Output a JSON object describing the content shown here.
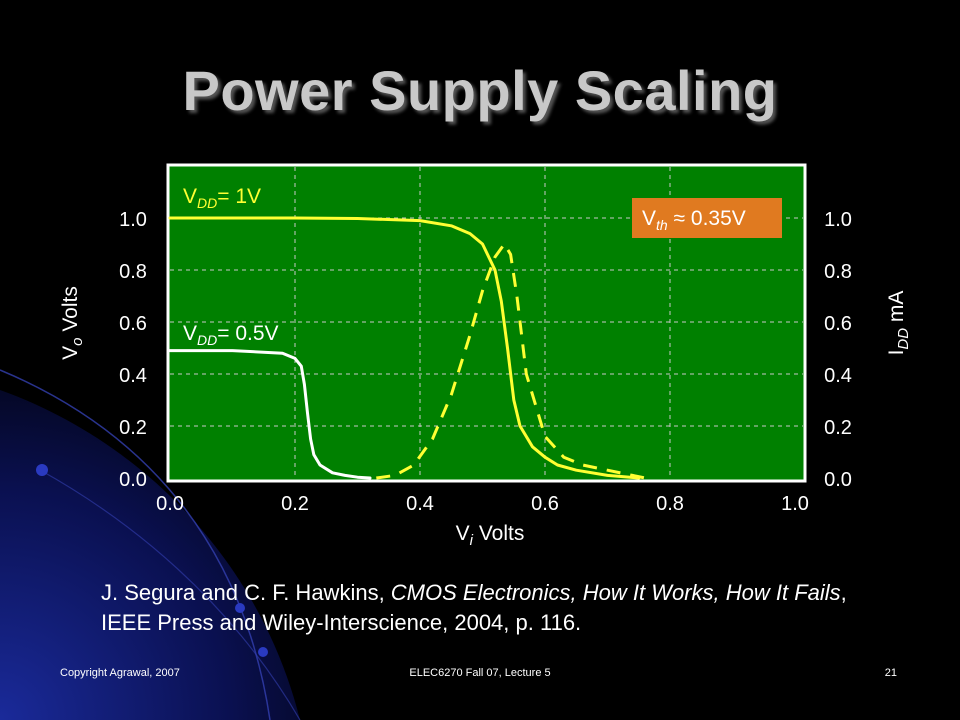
{
  "slide": {
    "title": "Power Supply Scaling",
    "citation": {
      "authors": "J. Segura and C. F. Hawkins, ",
      "book_title": "CMOS Electronics, How It Works, How It Fails",
      "rest": ", IEEE Press and Wiley-Interscience, 2004, p. 116."
    },
    "footer": {
      "left": "Copyright Agrawal, 2007",
      "center": "ELEC6270 Fall 07, Lecture 5",
      "right": "21"
    }
  },
  "colors": {
    "plot_bg": "#008000",
    "grid": "#c8c8c8",
    "curve_1v": "#ffff33",
    "curve_05v": "#ffffff",
    "idd_curve": "#ffff33",
    "callout_bg": "#e07a20"
  },
  "chart_data": {
    "type": "line",
    "xlabel": {
      "base": "V",
      "sub": "i",
      "rest": " Volts"
    },
    "ylabel_left": {
      "base": "V",
      "sub": "o",
      "rest": " Volts"
    },
    "ylabel_right": {
      "base": "I",
      "sub": "DD",
      "rest": " mA"
    },
    "xlim": [
      0,
      1.0
    ],
    "ylim": [
      0,
      1.2
    ],
    "x_ticks": [
      "0.0",
      "0.2",
      "0.4",
      "0.6",
      "0.8",
      "1.0"
    ],
    "y_ticks_left": [
      "0.0",
      "0.2",
      "0.4",
      "0.6",
      "0.8",
      "1.0"
    ],
    "y_ticks_right": [
      "0.0",
      "0.2",
      "0.4",
      "0.6",
      "0.8",
      "1.0"
    ],
    "grid": true,
    "series": [
      {
        "name": "VDD= 1V",
        "label": {
          "base": "V",
          "sub": "DD",
          "rest": "= 1V"
        },
        "axis": "left",
        "style": "solid",
        "x": [
          0,
          0.1,
          0.2,
          0.3,
          0.4,
          0.45,
          0.48,
          0.5,
          0.52,
          0.53,
          0.54,
          0.55,
          0.56,
          0.58,
          0.6,
          0.62,
          0.65,
          0.7,
          0.75
        ],
        "y": [
          1.0,
          1.0,
          1.0,
          0.998,
          0.99,
          0.97,
          0.94,
          0.9,
          0.8,
          0.68,
          0.5,
          0.3,
          0.2,
          0.12,
          0.08,
          0.05,
          0.03,
          0.01,
          0.0
        ]
      },
      {
        "name": "VDD= 0.5V",
        "label": {
          "base": "V",
          "sub": "DD",
          "rest": "= 0.5V"
        },
        "axis": "left",
        "style": "solid",
        "x": [
          0,
          0.1,
          0.18,
          0.2,
          0.21,
          0.215,
          0.22,
          0.225,
          0.23,
          0.24,
          0.26,
          0.28,
          0.3,
          0.32
        ],
        "y": [
          0.49,
          0.49,
          0.48,
          0.46,
          0.43,
          0.36,
          0.25,
          0.15,
          0.09,
          0.05,
          0.02,
          0.01,
          0.003,
          0.0
        ]
      },
      {
        "name": "IDD",
        "axis": "right",
        "style": "dashed",
        "x": [
          0.33,
          0.36,
          0.39,
          0.42,
          0.45,
          0.48,
          0.5,
          0.52,
          0.535,
          0.545,
          0.555,
          0.57,
          0.6,
          0.63,
          0.66,
          0.7,
          0.74,
          0.76
        ],
        "y": [
          0.0,
          0.01,
          0.05,
          0.15,
          0.32,
          0.55,
          0.72,
          0.85,
          0.9,
          0.86,
          0.7,
          0.4,
          0.16,
          0.08,
          0.05,
          0.03,
          0.01,
          0.0
        ]
      }
    ],
    "annotation": {
      "label": {
        "base": "V",
        "sub": "th",
        "rest": " ≈ 0.35V"
      }
    }
  }
}
